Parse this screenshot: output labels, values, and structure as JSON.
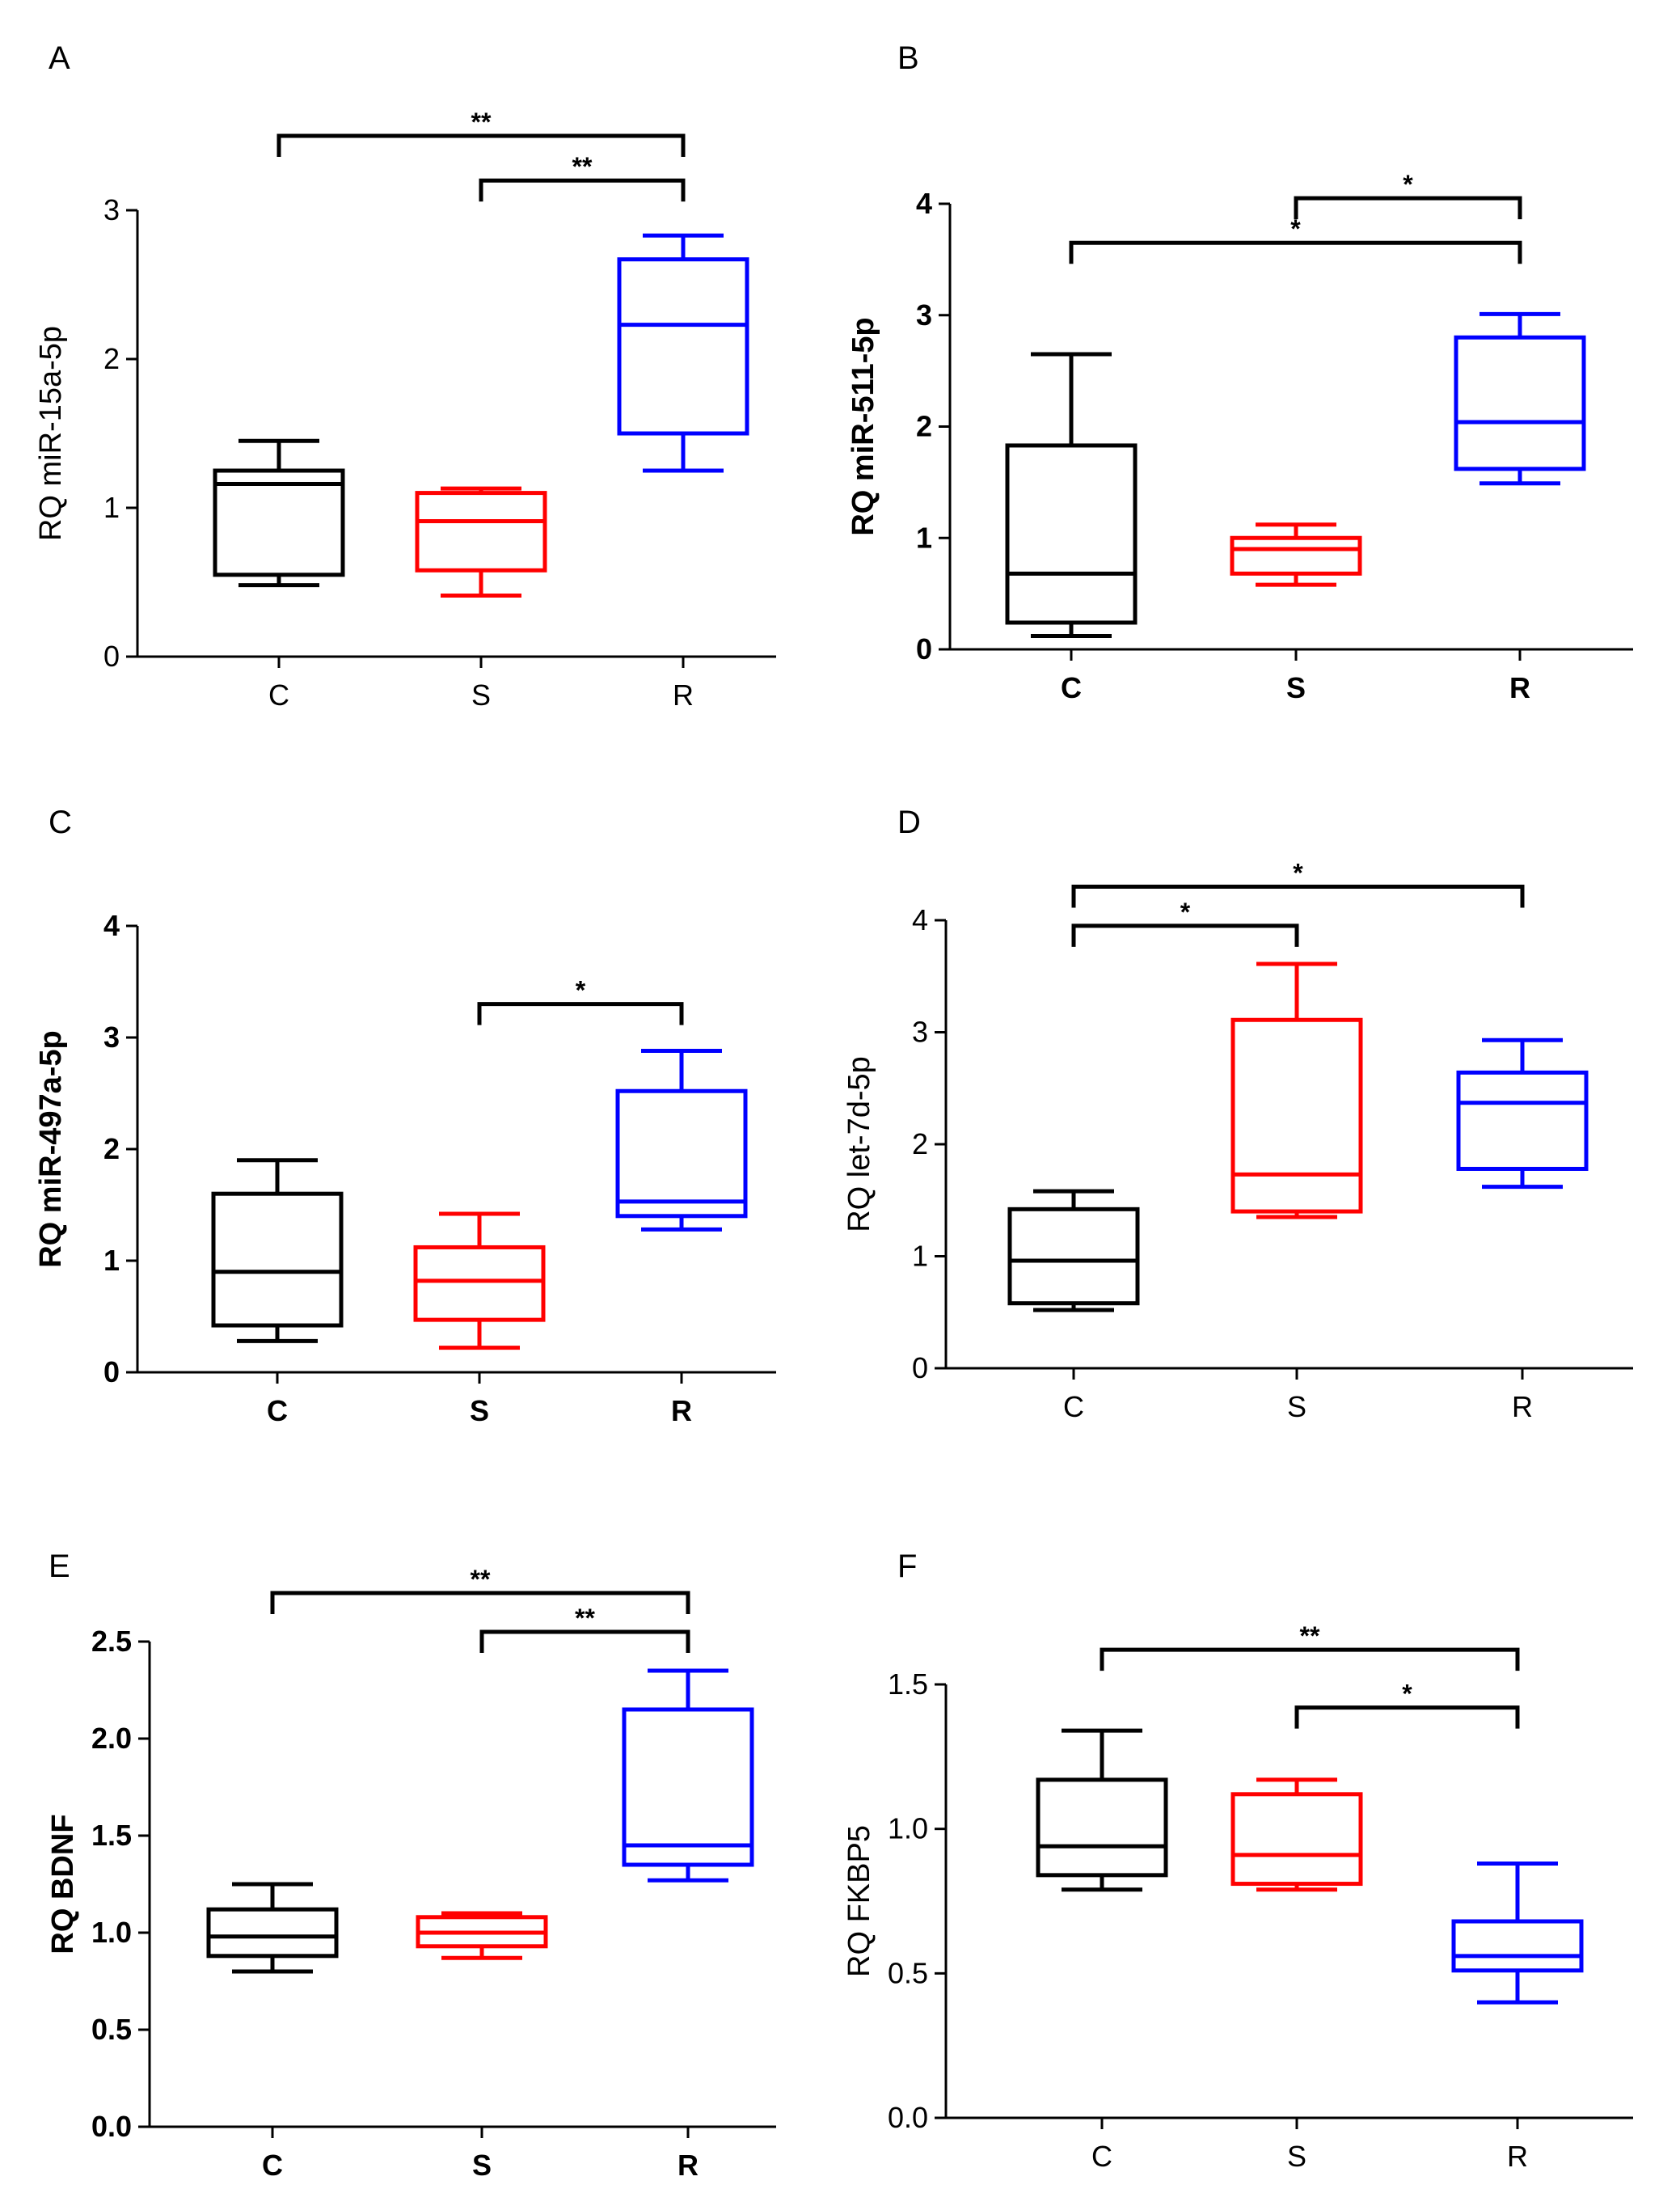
{
  "colors": {
    "C": "#000000",
    "S": "#ff0000",
    "R": "#0000ff"
  },
  "chart_data": [
    {
      "panel": "A",
      "type": "boxplot",
      "ylabel": "RQ miR-15a-5p",
      "bold": false,
      "categories": [
        "C",
        "S",
        "R"
      ],
      "ylim": [
        0,
        3
      ],
      "yticks": [
        "0",
        "1",
        "2",
        "3"
      ],
      "boxes": [
        {
          "group": "C",
          "min": 0.48,
          "q1": 0.55,
          "median": 1.16,
          "q3": 1.25,
          "max": 1.45
        },
        {
          "group": "S",
          "min": 0.41,
          "q1": 0.58,
          "median": 0.91,
          "q3": 1.1,
          "max": 1.13
        },
        {
          "group": "R",
          "min": 1.25,
          "q1": 1.5,
          "median": 2.23,
          "q3": 2.67,
          "max": 2.83
        }
      ],
      "significance": [
        {
          "from": "C",
          "to": "R",
          "label": "**",
          "y": 3.5
        },
        {
          "from": "S",
          "to": "R",
          "label": "**",
          "y": 3.2
        }
      ]
    },
    {
      "panel": "B",
      "type": "boxplot",
      "ylabel": "RQ miR-511-5p",
      "bold": true,
      "categories": [
        "C",
        "S",
        "R"
      ],
      "ylim": [
        0,
        4
      ],
      "yticks": [
        "0",
        "1",
        "2",
        "3",
        "4"
      ],
      "boxes": [
        {
          "group": "C",
          "min": 0.12,
          "q1": 0.24,
          "median": 0.68,
          "q3": 1.83,
          "max": 2.65
        },
        {
          "group": "S",
          "min": 0.58,
          "q1": 0.68,
          "median": 0.9,
          "q3": 1.0,
          "max": 1.12
        },
        {
          "group": "R",
          "min": 1.49,
          "q1": 1.62,
          "median": 2.04,
          "q3": 2.8,
          "max": 3.01
        }
      ],
      "significance": [
        {
          "from": "S",
          "to": "R",
          "label": "*",
          "y": 4.05
        },
        {
          "from": "C",
          "to": "R",
          "label": "*",
          "y": 3.65
        }
      ]
    },
    {
      "panel": "C",
      "type": "boxplot",
      "ylabel": "RQ miR-497a-5p",
      "bold": true,
      "categories": [
        "C",
        "S",
        "R"
      ],
      "ylim": [
        0,
        4
      ],
      "yticks": [
        "0",
        "1",
        "2",
        "3",
        "4"
      ],
      "boxes": [
        {
          "group": "C",
          "min": 0.28,
          "q1": 0.42,
          "median": 0.9,
          "q3": 1.6,
          "max": 1.9
        },
        {
          "group": "S",
          "min": 0.22,
          "q1": 0.47,
          "median": 0.82,
          "q3": 1.12,
          "max": 1.42
        },
        {
          "group": "R",
          "min": 1.28,
          "q1": 1.4,
          "median": 1.53,
          "q3": 2.52,
          "max": 2.88
        }
      ],
      "significance": [
        {
          "from": "S",
          "to": "R",
          "label": "*",
          "y": 3.3
        }
      ]
    },
    {
      "panel": "D",
      "type": "boxplot",
      "ylabel": "RQ let-7d-5p",
      "bold": false,
      "categories": [
        "C",
        "S",
        "R"
      ],
      "ylim": [
        0,
        4
      ],
      "yticks": [
        "0",
        "1",
        "2",
        "3",
        "4"
      ],
      "boxes": [
        {
          "group": "C",
          "min": 0.52,
          "q1": 0.58,
          "median": 0.96,
          "q3": 1.42,
          "max": 1.58
        },
        {
          "group": "S",
          "min": 1.35,
          "q1": 1.4,
          "median": 1.73,
          "q3": 3.11,
          "max": 3.61
        },
        {
          "group": "R",
          "min": 1.62,
          "q1": 1.78,
          "median": 2.37,
          "q3": 2.64,
          "max": 2.93
        }
      ],
      "significance": [
        {
          "from": "C",
          "to": "S",
          "label": "*",
          "y": 3.95
        },
        {
          "from": "C",
          "to": "R",
          "label": "*",
          "y": 4.3
        }
      ]
    },
    {
      "panel": "E",
      "type": "boxplot",
      "ylabel": "RQ BDNF",
      "bold": true,
      "categories": [
        "C",
        "S",
        "R"
      ],
      "ylim": [
        0,
        2.5
      ],
      "yticks": [
        "0.0",
        "0.5",
        "1.0",
        "1.5",
        "2.0",
        "2.5"
      ],
      "boxes": [
        {
          "group": "C",
          "min": 0.8,
          "q1": 0.88,
          "median": 0.98,
          "q3": 1.12,
          "max": 1.25
        },
        {
          "group": "S",
          "min": 0.87,
          "q1": 0.93,
          "median": 1.0,
          "q3": 1.08,
          "max": 1.1
        },
        {
          "group": "R",
          "min": 1.27,
          "q1": 1.35,
          "median": 1.45,
          "q3": 2.15,
          "max": 2.35
        }
      ],
      "significance": [
        {
          "from": "C",
          "to": "R",
          "label": "**",
          "y": 2.75
        },
        {
          "from": "S",
          "to": "R",
          "label": "**",
          "y": 2.55
        }
      ]
    },
    {
      "panel": "F",
      "type": "boxplot",
      "ylabel": "RQ FKBP5",
      "bold": false,
      "categories": [
        "C",
        "S",
        "R"
      ],
      "ylim": [
        0,
        1.5
      ],
      "yticks": [
        "0.0",
        "0.5",
        "1.0",
        "1.5"
      ],
      "boxes": [
        {
          "group": "C",
          "min": 0.79,
          "q1": 0.84,
          "median": 0.94,
          "q3": 1.17,
          "max": 1.34
        },
        {
          "group": "S",
          "min": 0.79,
          "q1": 0.81,
          "median": 0.91,
          "q3": 1.12,
          "max": 1.17
        },
        {
          "group": "R",
          "min": 0.4,
          "q1": 0.51,
          "median": 0.56,
          "q3": 0.68,
          "max": 0.88
        }
      ],
      "significance": [
        {
          "from": "C",
          "to": "R",
          "label": "**",
          "y": 1.62
        },
        {
          "from": "S",
          "to": "R",
          "label": "*",
          "y": 1.42
        }
      ]
    }
  ]
}
